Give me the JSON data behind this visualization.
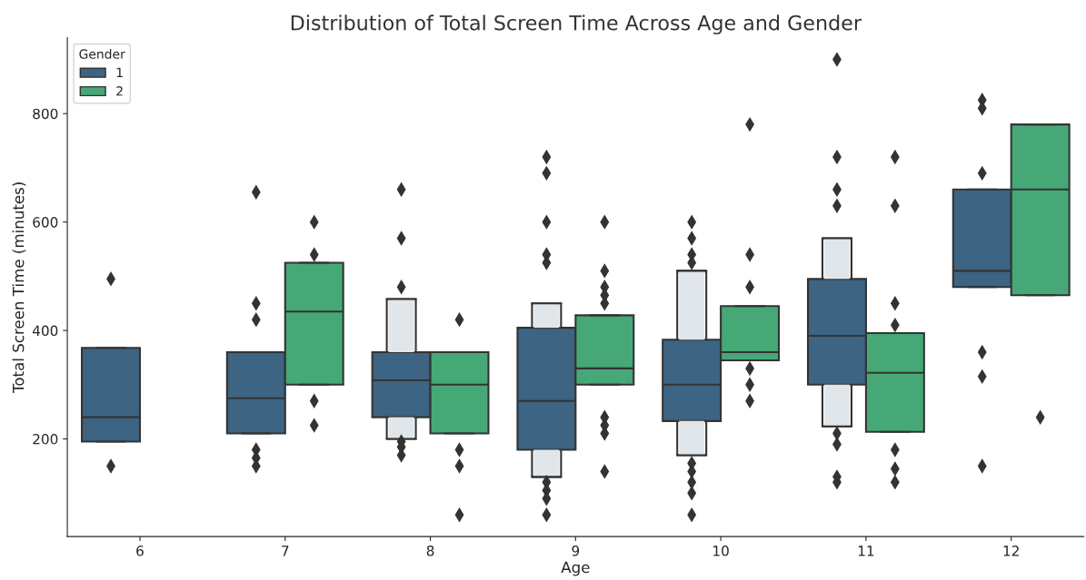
{
  "chart_data": {
    "type": "box",
    "title": "Distribution of Total Screen Time Across Age and Gender",
    "xlabel": "Age",
    "ylabel": "Total Screen Time (minutes)",
    "legend_title": "Gender",
    "legend": "top left",
    "grid": false,
    "marker": "diamond",
    "categories": [
      "6",
      "7",
      "8",
      "9",
      "10",
      "11",
      "12"
    ],
    "ylim": [
      20,
      940
    ],
    "yticks": [
      200,
      400,
      600,
      800
    ],
    "series": [
      {
        "name": "1",
        "color": "#3d6482",
        "boxes": [
          {
            "low": 195,
            "q1": 195,
            "median": 240,
            "q3": 368,
            "high": 368,
            "outliers": [
              495,
              150
            ]
          },
          {
            "low": 210,
            "q1": 210,
            "median": 275,
            "q3": 360,
            "high": 360,
            "outliers": [
              655,
              450,
              420,
              180,
              165,
              150
            ]
          },
          {
            "low": 200,
            "q1": 240,
            "median": 308,
            "q3": 360,
            "high": 458,
            "outliers": [
              660,
              570,
              480,
              195,
              185,
              170
            ]
          },
          {
            "low": 130,
            "q1": 180,
            "median": 270,
            "q3": 405,
            "high": 450,
            "outliers": [
              720,
              690,
              600,
              540,
              525,
              120,
              105,
              90,
              60
            ]
          },
          {
            "low": 170,
            "q1": 233,
            "median": 300,
            "q3": 383,
            "high": 510,
            "outliers": [
              600,
              570,
              540,
              525,
              155,
              140,
              120,
              100,
              60
            ]
          },
          {
            "low": 223,
            "q1": 300,
            "median": 390,
            "q3": 495,
            "high": 570,
            "outliers": [
              900,
              720,
              660,
              630,
              210,
              190,
              130,
              120
            ]
          },
          {
            "low": 480,
            "q1": 480,
            "median": 510,
            "q3": 660,
            "high": 660,
            "outliers": [
              825,
              810,
              690,
              360,
              315,
              150
            ]
          }
        ]
      },
      {
        "name": "2",
        "color": "#46a877",
        "boxes": [
          null,
          {
            "low": 300,
            "q1": 300,
            "median": 435,
            "q3": 525,
            "high": 525,
            "outliers": [
              600,
              540,
              270,
              225
            ]
          },
          {
            "low": 210,
            "q1": 210,
            "median": 300,
            "q3": 360,
            "high": 360,
            "outliers": [
              420,
              180,
              150,
              60
            ]
          },
          {
            "low": 300,
            "q1": 300,
            "median": 330,
            "q3": 428,
            "high": 428,
            "outliers": [
              600,
              510,
              480,
              465,
              450,
              240,
              225,
              210,
              140
            ]
          },
          {
            "low": 345,
            "q1": 345,
            "median": 360,
            "q3": 445,
            "high": 445,
            "outliers": [
              780,
              540,
              480,
              330,
              300,
              270
            ]
          },
          {
            "low": 213,
            "q1": 213,
            "median": 322,
            "q3": 395,
            "high": 395,
            "outliers": [
              720,
              630,
              450,
              410,
              180,
              145,
              120
            ]
          },
          {
            "low": 465,
            "q1": 465,
            "median": 660,
            "q3": 780,
            "high": 780,
            "outliers": [
              240
            ]
          }
        ]
      }
    ]
  }
}
